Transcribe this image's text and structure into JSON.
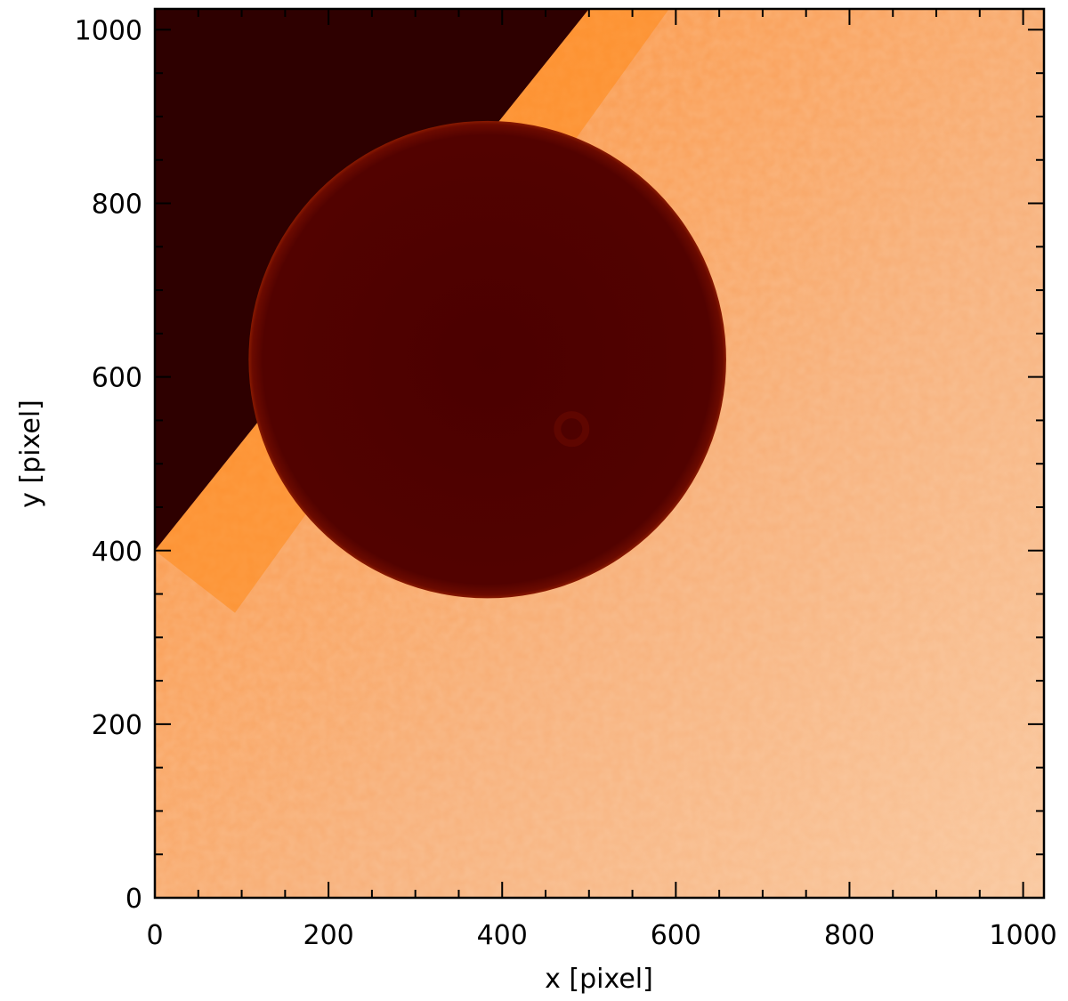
{
  "figure": {
    "xlabel": "x [pixel]",
    "ylabel": "y [pixel]",
    "xlim": [
      0,
      1024
    ],
    "ylim": [
      0,
      1024
    ],
    "x_ticks": [
      "0",
      "200",
      "400",
      "600",
      "800",
      "1000"
    ],
    "y_ticks": [
      "0",
      "200",
      "400",
      "600",
      "800",
      "1000"
    ],
    "x_tick_values": [
      0,
      200,
      400,
      600,
      800,
      1000
    ],
    "y_tick_values": [
      0,
      200,
      400,
      600,
      800,
      1000
    ],
    "minor_tick_step": 50
  },
  "image": {
    "description_colors": {
      "space": "#2e0000",
      "photosphere_bright": "#f7b380",
      "photosphere_limb": "#ff8a1a",
      "planet_disk": "#4a0000",
      "planet_rim": "#6a0a00"
    },
    "planet_center": [
      383,
      620
    ],
    "planet_radius": 275,
    "limb_line": [
      [
        0,
        400
      ],
      [
        500,
        1024
      ]
    ]
  }
}
